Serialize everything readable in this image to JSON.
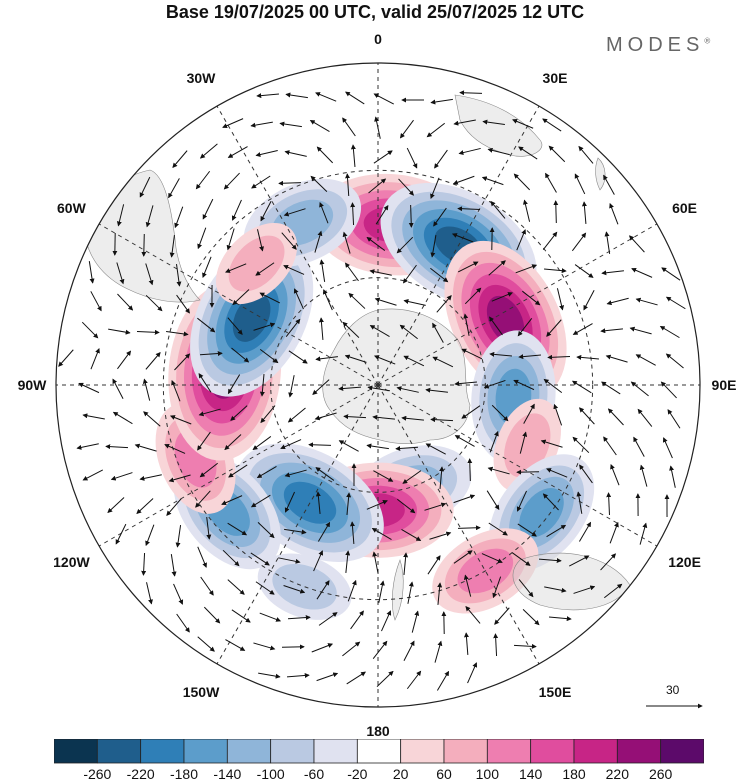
{
  "title": "Base 19/07/2025 00 UTC, valid 25/07/2025 12 UTC",
  "brand": {
    "name": "MODES",
    "mark": "®"
  },
  "longitude_labels": [
    "0",
    "30E",
    "60E",
    "90E",
    "120E",
    "150E",
    "180",
    "150W",
    "120W",
    "90W",
    "60W",
    "30W"
  ],
  "reference_vector": {
    "value": "30"
  },
  "colorbar": {
    "levels": [
      "-260",
      "-220",
      "-180",
      "-140",
      "-100",
      "-60",
      "-20",
      "20",
      "60",
      "100",
      "140",
      "180",
      "220",
      "260"
    ],
    "colors": [
      "#0b3450",
      "#1f5e8c",
      "#2f7fb7",
      "#5c9dcb",
      "#8fb5d9",
      "#bac9e2",
      "#e0e2f0",
      "#ffffff",
      "#f8d5d8",
      "#f4aebd",
      "#ee7eb0",
      "#e04d9e",
      "#c72586",
      "#950f76",
      "#5c0a6a"
    ]
  },
  "anomalies": [
    {
      "name": "hi-0",
      "lon": 5,
      "lat": -45,
      "value": 200
    },
    {
      "name": "lo-25e",
      "lon": 30,
      "lat": -45,
      "value": -220
    },
    {
      "name": "hi-60e",
      "lon": 63,
      "lat": -50,
      "value": 220
    },
    {
      "name": "lo-90e",
      "lon": 95,
      "lat": -52,
      "value": -140
    },
    {
      "name": "hi-105e",
      "lon": 112,
      "lat": -45,
      "value": 60
    },
    {
      "name": "lo-130e",
      "lon": 128,
      "lat": -32,
      "value": -140
    },
    {
      "name": "hi-150e",
      "lon": 150,
      "lat": -30,
      "value": 100
    },
    {
      "name": "lo-160e",
      "lon": 162,
      "lat": -60,
      "value": -120
    },
    {
      "name": "hi-180",
      "lon": 180,
      "lat": -55,
      "value": 180
    },
    {
      "name": "lo-145w",
      "lon": -150,
      "lat": -52,
      "value": -200
    },
    {
      "name": "lo-130w",
      "lon": -130,
      "lat": -35,
      "value": -140
    },
    {
      "name": "hi-115w",
      "lon": -112,
      "lat": -35,
      "value": 100
    },
    {
      "name": "hi-90w",
      "lon": -85,
      "lat": -47,
      "value": 240
    },
    {
      "name": "lo-70w",
      "lon": -62,
      "lat": -50,
      "value": -220
    },
    {
      "name": "lo-30w",
      "lon": -25,
      "lat": -40,
      "value": -120
    },
    {
      "name": "hi-45w",
      "lon": -45,
      "lat": -42,
      "value": 60
    },
    {
      "name": "lo-150w-n",
      "lon": -160,
      "lat": -30,
      "value": -60
    }
  ]
}
